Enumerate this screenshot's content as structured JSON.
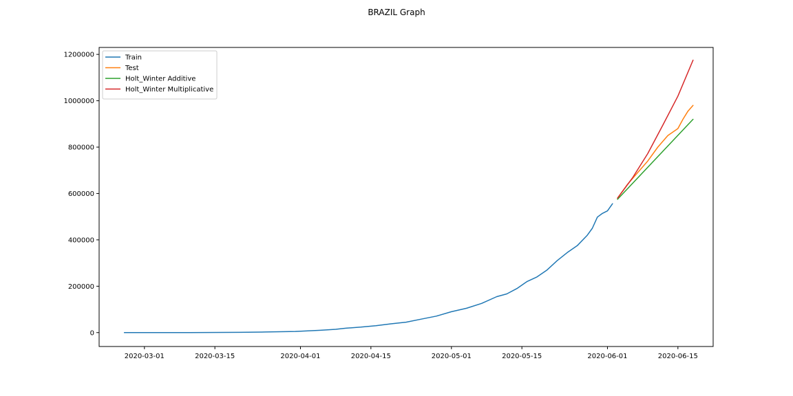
{
  "chart_data": {
    "type": "line",
    "title": "BRAZIL Graph",
    "xlabel": "",
    "ylabel": "",
    "x_axis": {
      "type": "date",
      "range": [
        "2020-02-21",
        "2020-06-22"
      ],
      "ticks": [
        "2020-03-01",
        "2020-03-15",
        "2020-04-01",
        "2020-04-15",
        "2020-05-01",
        "2020-05-15",
        "2020-06-01",
        "2020-06-15"
      ]
    },
    "y_axis": {
      "range": [
        -60000,
        1230000
      ],
      "ticks": [
        0,
        200000,
        400000,
        600000,
        800000,
        1000000,
        1200000
      ],
      "tick_labels": [
        "0",
        "200000",
        "400000",
        "600000",
        "800000",
        "1000000",
        "1200000"
      ]
    },
    "grid": false,
    "legend": {
      "position": "top-left"
    },
    "series": [
      {
        "name": "Train",
        "color": "#1f77b4",
        "x": [
          "2020-02-26",
          "2020-03-10",
          "2020-03-20",
          "2020-03-25",
          "2020-03-31",
          "2020-04-05",
          "2020-04-08",
          "2020-04-10",
          "2020-04-13",
          "2020-04-16",
          "2020-04-19",
          "2020-04-22",
          "2020-04-25",
          "2020-04-28",
          "2020-05-01",
          "2020-05-04",
          "2020-05-07",
          "2020-05-10",
          "2020-05-12",
          "2020-05-14",
          "2020-05-16",
          "2020-05-18",
          "2020-05-20",
          "2020-05-22",
          "2020-05-24",
          "2020-05-26",
          "2020-05-28",
          "2020-05-29",
          "2020-05-30",
          "2020-05-31",
          "2020-06-01",
          "2020-06-02"
        ],
        "y": [
          0,
          0,
          1000,
          2500,
          5000,
          10000,
          14000,
          19000,
          23500,
          30000,
          38000,
          45000,
          58000,
          71000,
          90000,
          105000,
          126000,
          155000,
          167000,
          190000,
          220000,
          240000,
          270000,
          310000,
          345000,
          375000,
          420000,
          450000,
          498000,
          514000,
          525000,
          556000
        ]
      },
      {
        "name": "Test",
        "color": "#ff7f0e",
        "x": [
          "2020-06-03",
          "2020-06-05",
          "2020-06-07",
          "2020-06-09",
          "2020-06-11",
          "2020-06-13",
          "2020-06-15",
          "2020-06-16",
          "2020-06-17",
          "2020-06-18"
        ],
        "y": [
          580000,
          640000,
          690000,
          740000,
          800000,
          850000,
          880000,
          920000,
          955000,
          980000
        ]
      },
      {
        "name": "Holt_Winter Additive",
        "color": "#2ca02c",
        "x": [
          "2020-06-03",
          "2020-06-18"
        ],
        "y": [
          575000,
          920000
        ]
      },
      {
        "name": "Holt_Winter Multiplicative",
        "color": "#d62728",
        "x": [
          "2020-06-03",
          "2020-06-06",
          "2020-06-09",
          "2020-06-12",
          "2020-06-15",
          "2020-06-18"
        ],
        "y": [
          580000,
          668000,
          772000,
          895000,
          1020000,
          1175000
        ]
      }
    ]
  }
}
